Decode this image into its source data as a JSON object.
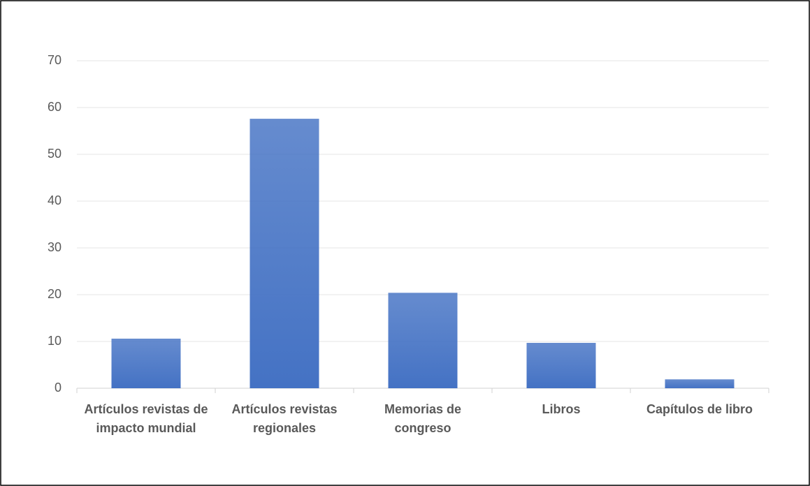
{
  "chart_data": {
    "type": "bar",
    "categories": [
      "Artículos revistas de impacto mundial",
      "Artículos revistas regionales",
      "Memorias de congreso",
      "Libros",
      "Capítulos de libro"
    ],
    "values": [
      10.6,
      57.6,
      20.4,
      9.7,
      1.9
    ],
    "color": "#4472c4",
    "ylim": [
      0,
      70
    ],
    "yticks": [
      0,
      10,
      20,
      30,
      40,
      50,
      60,
      70
    ],
    "grid": true
  }
}
